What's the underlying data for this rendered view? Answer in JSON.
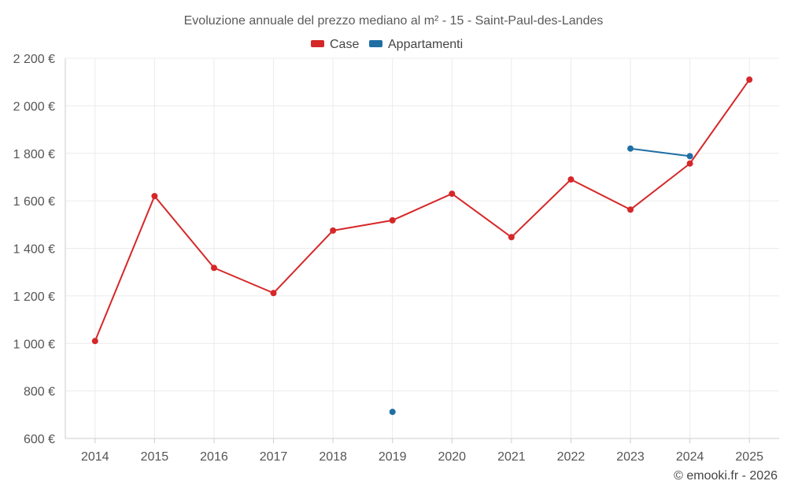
{
  "chart_data": {
    "type": "line",
    "title": "Evoluzione annuale del prezzo mediano al m² - 15 - Saint-Paul-des-Landes",
    "categories": [
      "2014",
      "2015",
      "2016",
      "2017",
      "2018",
      "2019",
      "2020",
      "2021",
      "2022",
      "2023",
      "2024",
      "2025"
    ],
    "ylim": [
      600,
      2200
    ],
    "yticks": [
      600,
      800,
      1000,
      1200,
      1400,
      1600,
      1800,
      2000,
      2200
    ],
    "ytick_labels": [
      "600 €",
      "800 €",
      "1 000 €",
      "1 200 €",
      "1 400 €",
      "1 600 €",
      "1 800 €",
      "2 000 €",
      "2 200 €"
    ],
    "grid": true,
    "legend_position": "top-center",
    "series": [
      {
        "name": "Case",
        "color": "#d62728",
        "values": [
          1010,
          1620,
          1318,
          1212,
          1475,
          1518,
          1630,
          1447,
          1690,
          1563,
          1757,
          2110
        ]
      },
      {
        "name": "Appartamenti",
        "color": "#1f6fa5",
        "values": [
          null,
          null,
          null,
          null,
          null,
          712,
          null,
          null,
          null,
          1820,
          1788,
          null
        ]
      }
    ]
  },
  "credit": "© emooki.fr - 2026"
}
